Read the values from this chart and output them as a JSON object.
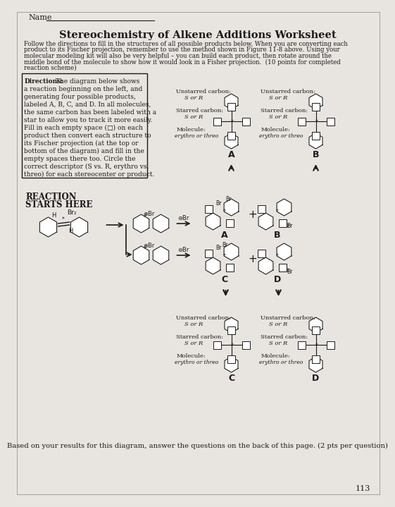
{
  "title": "Stereochemistry of Alkene Additions Worksheet",
  "name_label": "Name",
  "intro_text1": "Follow the directions to fill in the structures of all possible products below. When you are converting each",
  "intro_text2": "product to its Fischer projection, remember to use the method shown in Figure 11-8 above. Using your",
  "intro_text3": "molecular modeling kit will also be very helpful – you can build each product, then rotate around the",
  "intro_text4": "middle bond of the molecule to show how it would look in a Fisher projection.  (10 points for completed",
  "intro_text5": "reaction scheme)",
  "dir_line1": "Directions: The diagram below shows",
  "dir_line2": "a reaction beginning on the left, and",
  "dir_line3": "generating four possible products,",
  "dir_line4": "labeled A, B, C, and D. In all molecules,",
  "dir_line5": "the same carbon has been labeled with a",
  "dir_line6": "star to allow you to track it more easily.",
  "dir_line7": "Fill in each empty space (□) on each",
  "dir_line8": "product then convert each structure to",
  "dir_line9": "its Fischer projection (at the top or",
  "dir_line10": "bottom of the diagram) and fill in the",
  "dir_line11": "empty spaces there too. Circle the",
  "dir_line12": "correct descriptor (S vs. R, erythro vs.",
  "dir_line13": "threo) for each stereocenter or product.",
  "reaction_line1": "REACTION",
  "reaction_line2": "STARTS HERE",
  "unstarred": "Unstarred carbon:",
  "starred": "Starred carbon:",
  "sor_r": "S or R",
  "molecule_lbl": "Molecule:",
  "ert": "erythro or threo",
  "bottom_text": "Based on your results for this diagram, answer the questions on the back of this page. (2 pts per question)",
  "page_num": "113",
  "bg": "#e8e4df",
  "tc": "#1a1a1a"
}
